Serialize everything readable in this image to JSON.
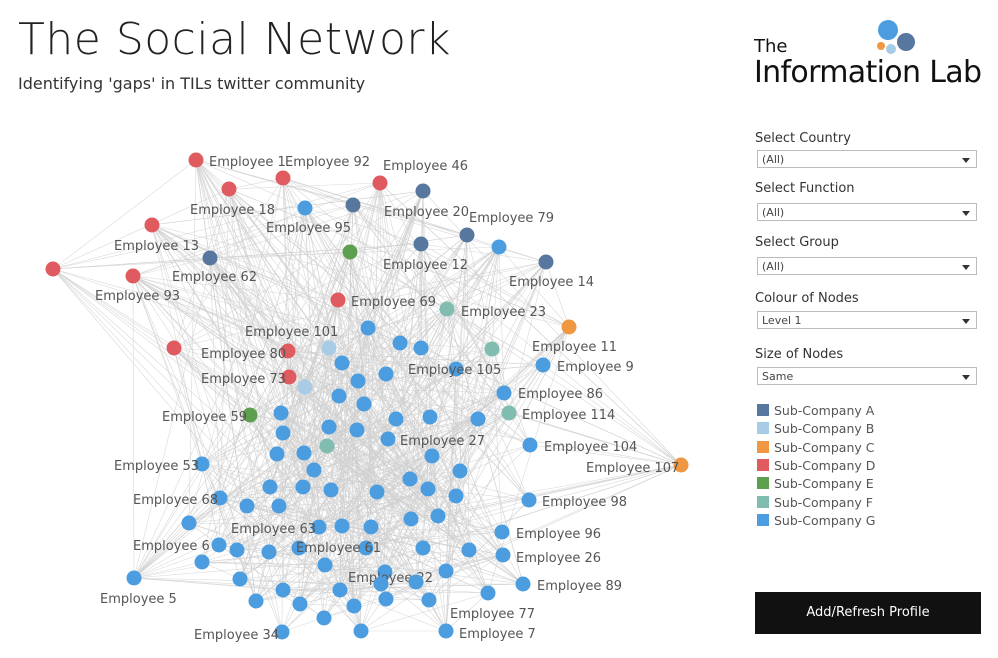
{
  "header": {
    "title": "The Social Network",
    "subtitle": "Identifying 'gaps' in TILs twitter community"
  },
  "logo": {
    "line1": "The",
    "line2": "Information Lab"
  },
  "filters": [
    {
      "label": "Select Country",
      "value": "(All)"
    },
    {
      "label": "Select Function",
      "value": "(All)"
    },
    {
      "label": "Select Group",
      "value": "(All)"
    },
    {
      "label": "Colour of Nodes",
      "value": "Level 1"
    },
    {
      "label": "Size of Nodes",
      "value": "Same"
    }
  ],
  "legend": [
    {
      "name": "Sub-Company A",
      "color": "#58779f"
    },
    {
      "name": "Sub-Company B",
      "color": "#a8cbe6"
    },
    {
      "name": "Sub-Company C",
      "color": "#ef9841"
    },
    {
      "name": "Sub-Company D",
      "color": "#df5b5f"
    },
    {
      "name": "Sub-Company E",
      "color": "#5ca04f"
    },
    {
      "name": "Sub-Company F",
      "color": "#80bcb0"
    },
    {
      "name": "Sub-Company G",
      "color": "#4b9de0"
    }
  ],
  "button": "Add/Refresh Profile",
  "nodes": [
    {
      "label": "Employee 1",
      "group": 3
    },
    {
      "label": "Employee 92",
      "group": 3
    },
    {
      "label": "Employee 46",
      "group": 3
    },
    {
      "label": "Employee 18",
      "group": 3
    },
    {
      "label": "Employee 20",
      "group": 0
    },
    {
      "label": "Employee 95",
      "group": 6
    },
    {
      "group": 0
    },
    {
      "label": "Employee 79",
      "group": 0
    },
    {
      "label": "Employee 13",
      "group": 3
    },
    {
      "label": "Employee 12",
      "group": 0
    },
    {
      "group": 6
    },
    {
      "group": 4
    },
    {
      "label": "Employee 62",
      "group": 0
    },
    {
      "label": "Employee 14",
      "group": 0
    },
    {
      "group": 3
    },
    {
      "label": "Employee 93",
      "group": 3
    },
    {
      "label": "Employee 69",
      "group": 3
    },
    {
      "label": "Employee 23",
      "group": 5
    },
    {
      "label": "Employee 11",
      "group": 2
    },
    {
      "label": "Employee 101",
      "group": 6
    },
    {
      "group": 3
    },
    {
      "label": "Employee 80",
      "group": 3
    },
    {
      "group": 1
    },
    {
      "group": 6
    },
    {
      "group": 6
    },
    {
      "group": 5
    },
    {
      "group": 6
    },
    {
      "label": "Employee 9",
      "group": 6
    },
    {
      "label": "Employee 73",
      "group": 3
    },
    {
      "group": 6
    },
    {
      "group": 1
    },
    {
      "label": "Employee 105",
      "group": 6
    },
    {
      "group": 6
    },
    {
      "group": 6
    },
    {
      "label": "Employee 86",
      "group": 6
    },
    {
      "group": 6
    },
    {
      "label": "Employee 59",
      "group": 4
    },
    {
      "label": "Employee 114",
      "group": 5
    },
    {
      "group": 6
    },
    {
      "group": 6
    },
    {
      "group": 6
    },
    {
      "group": 6
    },
    {
      "group": 6
    },
    {
      "group": 6
    },
    {
      "group": 6
    },
    {
      "label": "Employee 27",
      "group": 6
    },
    {
      "group": 5
    },
    {
      "label": "Employee 104",
      "group": 6
    },
    {
      "group": 6
    },
    {
      "group": 6
    },
    {
      "group": 6
    },
    {
      "label": "Employee 107",
      "group": 2
    },
    {
      "label": "Employee 53",
      "group": 6
    },
    {
      "group": 6
    },
    {
      "group": 6
    },
    {
      "group": 6
    },
    {
      "group": 6
    },
    {
      "group": 6
    },
    {
      "group": 6
    },
    {
      "group": 6
    },
    {
      "group": 6
    },
    {
      "group": 6
    },
    {
      "label": "Employee 68",
      "group": 6
    },
    {
      "label": "Employee 98",
      "group": 6
    },
    {
      "group": 6
    },
    {
      "group": 6
    },
    {
      "group": 6
    },
    {
      "group": 6
    },
    {
      "group": 6
    },
    {
      "label": "Employee 63",
      "group": 6
    },
    {
      "group": 6
    },
    {
      "group": 6
    },
    {
      "label": "Employee 96",
      "group": 6
    },
    {
      "label": "Employee 6",
      "group": 6
    },
    {
      "group": 6
    },
    {
      "label": "Employee 61",
      "group": 6
    },
    {
      "group": 6
    },
    {
      "group": 6
    },
    {
      "group": 6
    },
    {
      "group": 6
    },
    {
      "label": "Employee 26",
      "group": 6
    },
    {
      "group": 6
    },
    {
      "group": 6
    },
    {
      "label": "Employee 22",
      "group": 6
    },
    {
      "group": 6
    },
    {
      "label": "Employee 5",
      "group": 6
    },
    {
      "group": 6
    },
    {
      "label": "Employee 89",
      "group": 6
    },
    {
      "group": 6
    },
    {
      "group": 6
    },
    {
      "group": 6
    },
    {
      "group": 6
    },
    {
      "label": "Employee 77",
      "group": 6
    },
    {
      "group": 6
    },
    {
      "group": 6
    },
    {
      "group": 6
    },
    {
      "group": 6
    },
    {
      "group": 6
    },
    {
      "group": 6
    },
    {
      "label": "Employee 34",
      "group": 6
    },
    {
      "group": 6
    },
    {
      "label": "Employee 7",
      "group": 6
    }
  ]
}
